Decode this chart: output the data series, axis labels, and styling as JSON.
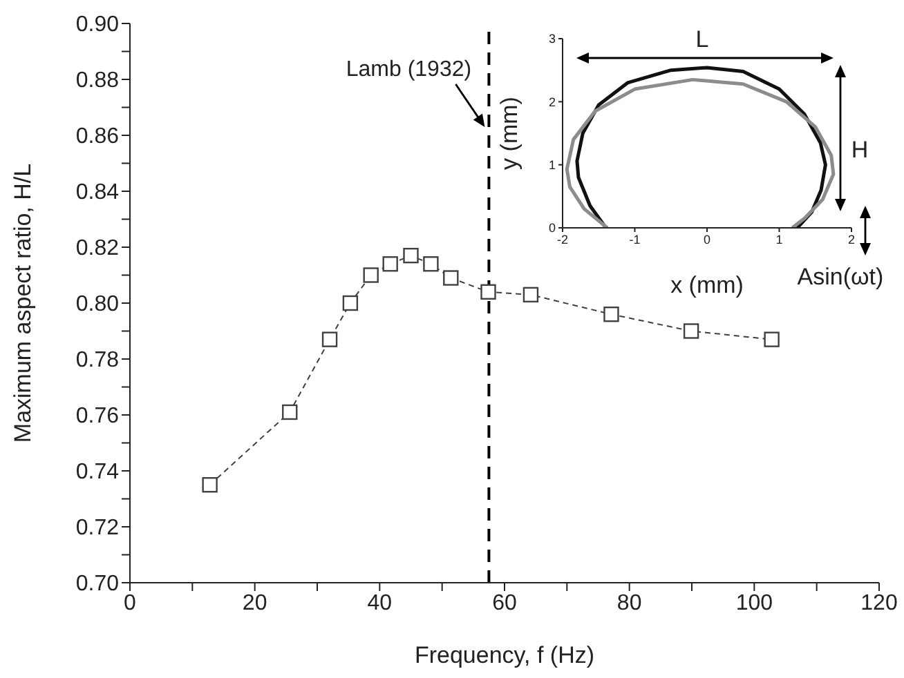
{
  "chart_data": [
    {
      "type": "line",
      "xlabel": "Frequency, f (Hz)",
      "ylabel": "Maximum aspect ratio, H/L",
      "xlim": [
        0,
        120
      ],
      "ylim": [
        0.7,
        0.9
      ],
      "xticks": [
        0,
        {
          "value": 10,
          "label": null
        },
        20,
        {
          "value": 30,
          "label": null
        },
        40,
        {
          "value": 50,
          "label": null
        },
        60,
        {
          "value": 70,
          "label": null
        },
        80,
        {
          "value": 90,
          "label": null
        },
        100,
        {
          "value": 110,
          "label": null
        },
        120
      ],
      "yticks": [
        {
          "value": 0.7,
          "label": "0.70"
        },
        {
          "value": 0.71,
          "label": null
        },
        {
          "value": 0.72,
          "label": "0.72"
        },
        {
          "value": 0.73,
          "label": null
        },
        {
          "value": 0.74,
          "label": "0.74"
        },
        {
          "value": 0.75,
          "label": null
        },
        {
          "value": 0.76,
          "label": "0.76"
        },
        {
          "value": 0.77,
          "label": null
        },
        {
          "value": 0.78,
          "label": "0.78"
        },
        {
          "value": 0.79,
          "label": null
        },
        {
          "value": 0.8,
          "label": "0.80"
        },
        {
          "value": 0.81,
          "label": null
        },
        {
          "value": 0.82,
          "label": "0.82"
        },
        {
          "value": 0.83,
          "label": null
        },
        {
          "value": 0.84,
          "label": "0.84"
        },
        {
          "value": 0.85,
          "label": null
        },
        {
          "value": 0.86,
          "label": "0.86"
        },
        {
          "value": 0.87,
          "label": null
        },
        {
          "value": 0.88,
          "label": "0.88"
        },
        {
          "value": 0.89,
          "label": null
        },
        {
          "value": 0.9,
          "label": "0.90"
        }
      ],
      "marker": "square",
      "line_style": "dashed",
      "x": [
        12.8,
        25.6,
        32.0,
        35.3,
        38.6,
        41.7,
        45.0,
        48.2,
        51.4,
        57.4,
        64.2,
        77.1,
        89.9,
        102.8
      ],
      "series": [
        {
          "color": "#404040",
          "values": [
            0.735,
            0.761,
            0.787,
            0.8,
            0.81,
            0.814,
            0.817,
            0.814,
            0.809,
            0.804,
            0.803,
            0.796,
            0.79,
            0.787
          ]
        }
      ],
      "ref_lines": [
        {
          "axis": "x",
          "value": 57.5,
          "label": "Lamb (1932)",
          "color": "#000000",
          "line_style": "dashed"
        }
      ]
    },
    {
      "type": "line",
      "xlabel": "x (mm)",
      "ylabel": "y (mm)",
      "xlim": [
        -2,
        2
      ],
      "ylim": [
        0,
        3
      ],
      "xticks": [
        -2,
        -1,
        0,
        1,
        2
      ],
      "yticks": [
        0,
        1,
        2,
        3
      ],
      "marker": "none",
      "line_style": "solid",
      "series": [
        {
          "color": "#111111",
          "x": [
            -1.4,
            -1.62,
            -1.78,
            -1.8,
            -1.72,
            -1.5,
            -1.1,
            -0.5,
            0,
            0.5,
            1.0,
            1.35,
            1.57,
            1.64,
            1.58,
            1.45,
            1.25
          ],
          "values": [
            0,
            0.35,
            0.8,
            1.06,
            1.5,
            1.95,
            2.3,
            2.5,
            2.54,
            2.48,
            2.2,
            1.8,
            1.35,
            1.0,
            0.6,
            0.25,
            0
          ]
        },
        {
          "color": "#8c8c8c",
          "x": [
            -1.38,
            -1.7,
            -1.9,
            -1.94,
            -1.85,
            -1.55,
            -1.0,
            -0.2,
            0.5,
            1.1,
            1.5,
            1.72,
            1.75,
            1.6,
            1.35,
            1.18
          ],
          "values": [
            0,
            0.3,
            0.65,
            0.93,
            1.4,
            1.85,
            2.2,
            2.35,
            2.28,
            2.0,
            1.6,
            1.15,
            0.85,
            0.45,
            0.15,
            0
          ]
        }
      ],
      "annotations": [
        "L",
        "H",
        "Asin(ωt)"
      ]
    }
  ]
}
